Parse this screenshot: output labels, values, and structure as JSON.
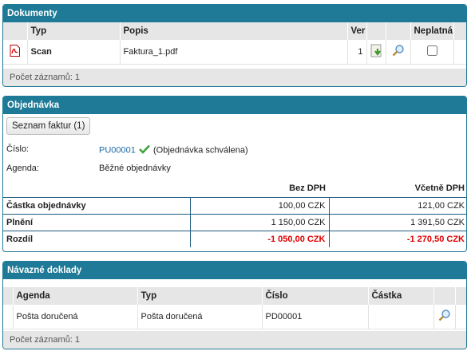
{
  "dokumenty": {
    "title": "Dokumenty",
    "columns": [
      "Typ",
      "Popis",
      "Ver",
      "Neplatná"
    ],
    "row": {
      "type": "Scan",
      "description": "Faktura_1.pdf",
      "version": "1",
      "invalid_checked": false
    },
    "footer": "Počet záznamů: 1"
  },
  "objednavka": {
    "title": "Objednávka",
    "list_button": "Seznam faktur (1)",
    "cislo_label": "Číslo:",
    "cislo_value": "PU00001",
    "cislo_status": "(Objednávka schválena)",
    "agenda_label": "Agenda:",
    "agenda_value": "Běžné objednávky",
    "amount_headers": {
      "bez_dph": "Bez DPH",
      "vcetne_dph": "Včetně DPH"
    },
    "rows": [
      {
        "label": "Částka objednávky",
        "bez_dph": "100,00 CZK",
        "vcetne_dph": "121,00 CZK"
      },
      {
        "label": "Plnění",
        "bez_dph": "1 150,00 CZK",
        "vcetne_dph": "1 391,50 CZK"
      },
      {
        "label": "Rozdíl",
        "bez_dph": "-1 050,00 CZK",
        "vcetne_dph": "-1 270,50 CZK"
      }
    ],
    "negative_color": "#e00000"
  },
  "navazne": {
    "title": "Návazné doklady",
    "columns": [
      "Agenda",
      "Typ",
      "Číslo",
      "Částka"
    ],
    "row": {
      "agenda": "Pošta doručená",
      "typ": "Pošta doručená",
      "cislo": "PD00001",
      "castka": ""
    },
    "footer": "Počet záznamů: 1"
  },
  "colors": {
    "panel_header": "#1e7a96",
    "link": "#1e6aa5"
  }
}
